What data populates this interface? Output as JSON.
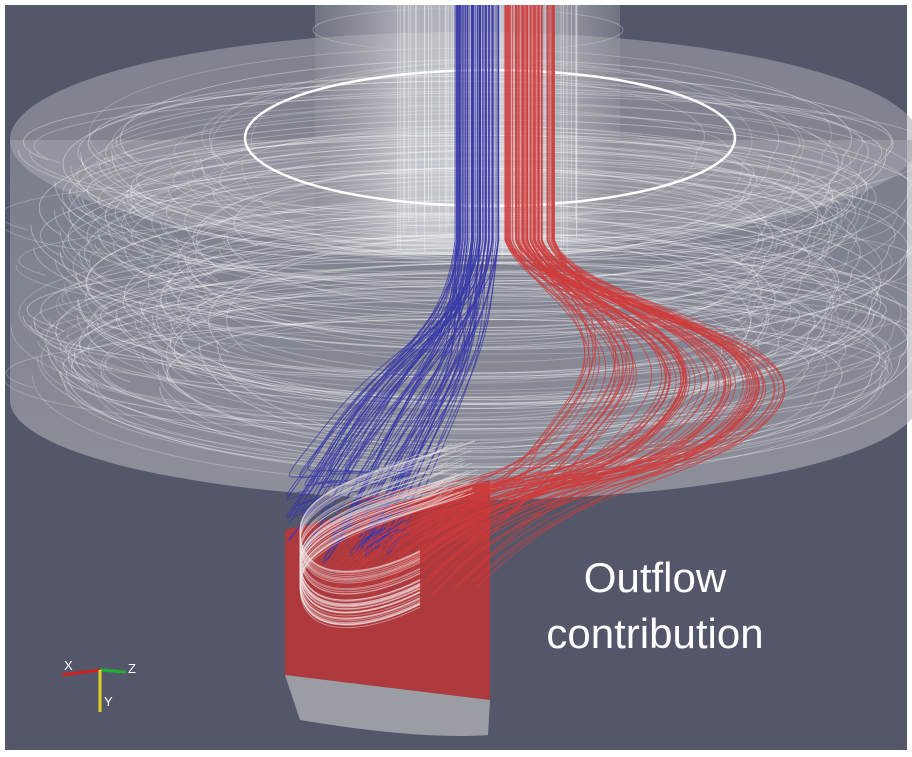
{
  "annotation": {
    "lines": [
      "Outflow",
      "contribution"
    ]
  },
  "axes": {
    "x": "X",
    "y": "Y",
    "z": "Z"
  }
}
